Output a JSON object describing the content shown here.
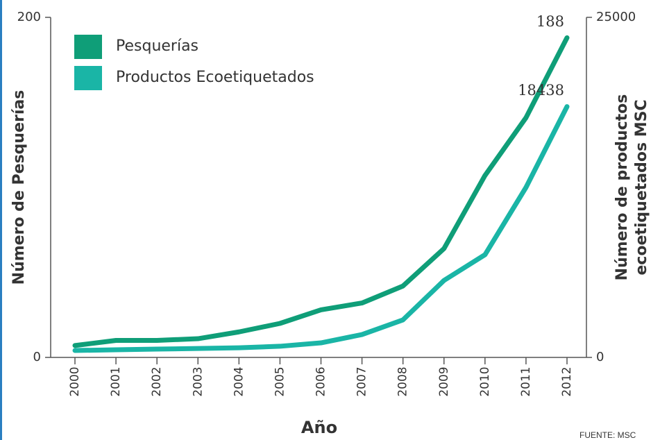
{
  "chart_data": {
    "type": "line",
    "x_label": "Año",
    "y_label": "Número de Pesquerías",
    "y2_label": [
      "Número de productos",
      "ecoetiquetados MSC"
    ],
    "source": "FUENTE: MSC",
    "categories": [
      "2000",
      "2001",
      "2002",
      "2003",
      "2004",
      "2005",
      "2006",
      "2007",
      "2008",
      "2009",
      "2010",
      "2011",
      "2012"
    ],
    "series": [
      {
        "name": "Pesquerías",
        "color": "#0f9e78",
        "values": [
          7,
          10,
          10,
          11,
          15,
          20,
          28,
          32,
          42,
          64,
          107,
          141,
          188
        ]
      },
      {
        "name": "Productos Ecoetiquetados",
        "color": "#1ab5a6",
        "axis": "y2",
        "values": [
          510,
          560,
          610,
          660,
          710,
          820,
          1070,
          1680,
          2760,
          5660,
          7550,
          12500,
          18438
        ]
      }
    ],
    "ylim": [
      0,
      200
    ],
    "yticks": [
      0,
      200
    ],
    "y2lim": [
      0,
      25000
    ],
    "y2ticks": [
      0,
      25000
    ],
    "legend": "top-left"
  }
}
